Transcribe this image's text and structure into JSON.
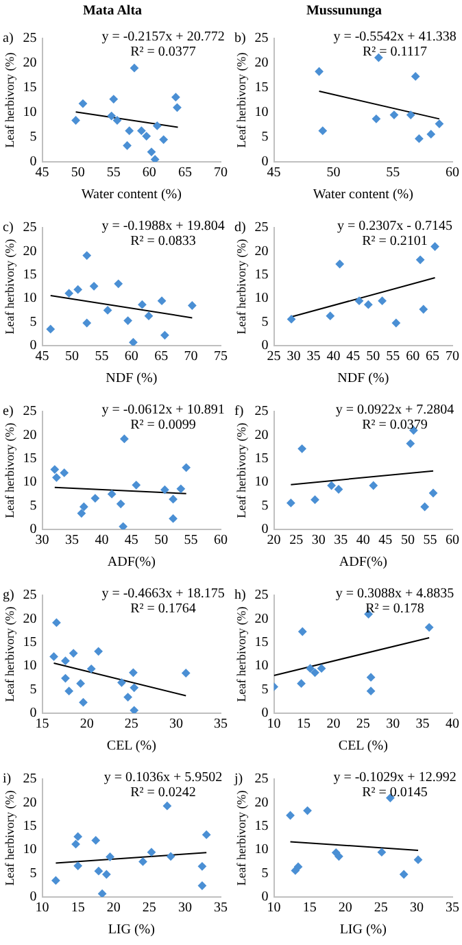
{
  "chart_data": [
    {
      "type": "scatter",
      "title": "Mata Alta",
      "xlabel": "Water content (%)",
      "ylabel": "Leaf herbivory (%)",
      "annotations": [
        "a)",
        "y = -0.2157x + 20.772",
        "R² = 0.0377"
      ],
      "xlim": [
        45,
        70
      ],
      "xticks": [
        45,
        50,
        55,
        60,
        65,
        70
      ],
      "ylim": [
        0,
        25
      ],
      "yticks": [
        0,
        5,
        10,
        15,
        20,
        25
      ],
      "grid": false,
      "series": [
        {
          "type": "scatter",
          "marker": "diamond",
          "color": "#4a8fd4",
          "x": [
            49.7,
            50.7,
            55.0,
            54.7,
            55.5,
            57.9,
            57.2,
            56.9,
            58.9,
            59.6,
            61.1,
            60.3,
            60.8,
            62.0,
            63.7,
            63.9
          ],
          "values": [
            8.4,
            11.8,
            12.7,
            9.3,
            8.4,
            19.0,
            6.3,
            3.3,
            6.3,
            5.2,
            7.3,
            2.0,
            0.5,
            4.5,
            13.1,
            11.0
          ]
        },
        {
          "type": "line",
          "marker": "none",
          "color": "#000000",
          "x": [
            49.7,
            64.0
          ],
          "values": [
            10.1,
            7.0
          ]
        }
      ]
    },
    {
      "type": "scatter",
      "title": "Mussununga",
      "xlabel": "Water content (%)",
      "ylabel": "Leaf herbivory (%)",
      "annotations": [
        "b)",
        "y = -0.5542x + 41.338",
        "R² = 0.1117"
      ],
      "xlim": [
        45,
        60
      ],
      "xticks": [
        45,
        50,
        55,
        60
      ],
      "ylim": [
        0,
        25
      ],
      "yticks": [
        0,
        5,
        10,
        15,
        20,
        25
      ],
      "grid": false,
      "series": [
        {
          "type": "scatter",
          "marker": "diamond",
          "color": "#4a8fd4",
          "x": [
            48.8,
            49.1,
            53.8,
            53.6,
            55.1,
            56.5,
            56.9,
            57.2,
            58.2,
            58.9
          ],
          "values": [
            18.3,
            6.3,
            21.1,
            8.7,
            9.5,
            9.5,
            17.3,
            4.7,
            5.6,
            7.7
          ]
        },
        {
          "type": "line",
          "marker": "none",
          "color": "#000000",
          "x": [
            48.8,
            58.9
          ],
          "values": [
            14.3,
            8.7
          ]
        }
      ]
    },
    {
      "type": "scatter",
      "xlabel": "NDF (%)",
      "ylabel": "Leaf herbivory (%)",
      "annotations": [
        "c)",
        "y = -0.1988x + 19.804",
        "R² = 0.0833"
      ],
      "xlim": [
        45,
        75
      ],
      "xticks": [
        45,
        50,
        55,
        60,
        65,
        70,
        75
      ],
      "ylim": [
        0,
        25
      ],
      "yticks": [
        0,
        5,
        10,
        15,
        20,
        25
      ],
      "grid": false,
      "series": [
        {
          "type": "scatter",
          "marker": "diamond",
          "color": "#4a8fd4",
          "x": [
            46.4,
            49.5,
            51.0,
            52.5,
            52.5,
            53.7,
            56.0,
            57.8,
            59.4,
            60.3,
            61.8,
            62.6,
            62.9,
            65.1,
            65.6,
            70.2
          ],
          "values": [
            3.5,
            11.1,
            11.9,
            19.1,
            4.8,
            12.6,
            7.5,
            13.1,
            5.3,
            0.7,
            8.7,
            null,
            6.3,
            9.5,
            2.2,
            8.5
          ]
        },
        {
          "type": "line",
          "marker": "none",
          "color": "#000000",
          "x": [
            46.4,
            70.2
          ],
          "values": [
            10.6,
            5.9
          ]
        }
      ]
    },
    {
      "type": "scatter",
      "xlabel": "NDF (%)",
      "ylabel": "Leaf herbivory (%)",
      "annotations": [
        "d)",
        "y = 0.2307x - 0.7145",
        "R² = 0.2101"
      ],
      "xlim": [
        25,
        70
      ],
      "xticks": [
        25,
        30,
        35,
        40,
        45,
        50,
        55,
        60,
        65,
        70
      ],
      "ylim": [
        0,
        25
      ],
      "yticks": [
        0,
        5,
        10,
        15,
        20,
        25
      ],
      "grid": false,
      "series": [
        {
          "type": "scatter",
          "marker": "diamond",
          "color": "#4a8fd4",
          "x": [
            29.4,
            39.2,
            41.6,
            46.5,
            48.8,
            52.3,
            55.8,
            61.9,
            62.7,
            65.6
          ],
          "values": [
            5.6,
            6.3,
            17.3,
            9.5,
            8.7,
            9.5,
            4.8,
            18.2,
            7.7,
            21.0
          ]
        },
        {
          "type": "line",
          "marker": "none",
          "color": "#000000",
          "x": [
            29.4,
            65.6
          ],
          "values": [
            6.1,
            14.4
          ]
        }
      ]
    },
    {
      "type": "scatter",
      "xlabel": "ADF(%)",
      "ylabel": "Leaf herbivory (%)",
      "annotations": [
        "e)",
        "y = -0.0612x + 10.891",
        "R² = 0.0099"
      ],
      "xlim": [
        30,
        60
      ],
      "xticks": [
        30,
        35,
        40,
        45,
        50,
        55,
        60
      ],
      "ylim": [
        0,
        25
      ],
      "yticks": [
        0,
        5,
        10,
        15,
        20,
        25
      ],
      "grid": false,
      "series": [
        {
          "type": "scatter",
          "marker": "diamond",
          "color": "#4a8fd4",
          "x": [
            32.1,
            32.4,
            33.7,
            36.6,
            37.0,
            38.9,
            41.7,
            43.2,
            43.8,
            43.6,
            45.8,
            50.6,
            52.0,
            52.0,
            53.3,
            54.2
          ],
          "values": [
            12.7,
            11.0,
            12.0,
            3.4,
            4.8,
            6.6,
            7.5,
            5.4,
            19.2,
            0.6,
            9.4,
            8.4,
            6.4,
            2.3,
            8.6,
            13.1
          ]
        },
        {
          "type": "line",
          "marker": "none",
          "color": "#000000",
          "x": [
            32.1,
            54.2
          ],
          "values": [
            8.9,
            7.6
          ]
        }
      ]
    },
    {
      "type": "scatter",
      "xlabel": "ADF(%)",
      "ylabel": "Leaf herbivory (%)",
      "annotations": [
        "f)",
        "y = 0.0922x + 7.2804",
        "R² = 0.0379"
      ],
      "xlim": [
        20,
        60
      ],
      "xticks": [
        20,
        25,
        30,
        35,
        40,
        45,
        50,
        55,
        60
      ],
      "ylim": [
        0,
        25
      ],
      "yticks": [
        0,
        5,
        10,
        15,
        20,
        25
      ],
      "grid": false,
      "series": [
        {
          "type": "scatter",
          "marker": "diamond",
          "color": "#4a8fd4",
          "x": [
            23.8,
            26.3,
            29.2,
            32.9,
            34.5,
            42.3,
            50.6,
            51.3,
            53.8,
            55.7
          ],
          "values": [
            5.6,
            17.1,
            6.3,
            9.3,
            8.5,
            9.3,
            18.2,
            21.0,
            4.8,
            7.7
          ]
        },
        {
          "type": "line",
          "marker": "none",
          "color": "#000000",
          "x": [
            23.8,
            55.7
          ],
          "values": [
            9.5,
            12.4
          ]
        }
      ]
    },
    {
      "type": "scatter",
      "xlabel": "CEL (%)",
      "ylabel": "Leaf herbivory (%)",
      "annotations": [
        "g)",
        "y = -0.4663x + 18.175",
        "R² = 0.1764"
      ],
      "xlim": [
        15,
        35
      ],
      "xticks": [
        15,
        20,
        25,
        30,
        35
      ],
      "ylim": [
        0,
        25
      ],
      "yticks": [
        0,
        5,
        10,
        15,
        20,
        25
      ],
      "grid": false,
      "series": [
        {
          "type": "scatter",
          "marker": "diamond",
          "color": "#4a8fd4",
          "x": [
            16.3,
            16.6,
            17.6,
            17.6,
            18.0,
            18.5,
            19.3,
            19.6,
            20.5,
            21.3,
            23.9,
            24.6,
            25.2,
            25.3,
            25.3,
            31.1
          ],
          "values": [
            12.0,
            19.2,
            11.1,
            7.4,
            4.7,
            12.7,
            6.3,
            2.3,
            9.4,
            13.1,
            6.5,
            3.4,
            8.6,
            5.4,
            0.6,
            8.5
          ]
        },
        {
          "type": "line",
          "marker": "none",
          "color": "#000000",
          "x": [
            16.3,
            31.1
          ],
          "values": [
            10.6,
            3.7
          ]
        }
      ]
    },
    {
      "type": "scatter",
      "xlabel": "CEL (%)",
      "ylabel": "Leaf herbivory (%)",
      "annotations": [
        "h)",
        "y = 0.3088x + 4.8835",
        "R² = 0.178"
      ],
      "xlim": [
        10,
        40
      ],
      "xticks": [
        10,
        15,
        20,
        25,
        30,
        35,
        40
      ],
      "ylim": [
        0,
        25
      ],
      "yticks": [
        0,
        5,
        10,
        15,
        20,
        25
      ],
      "grid": false,
      "series": [
        {
          "type": "scatter",
          "marker": "diamond",
          "color": "#4a8fd4",
          "x": [
            10.0,
            14.6,
            14.8,
            16.1,
            16.9,
            18.0,
            25.9,
            26.3,
            26.3,
            36.1
          ],
          "values": [
            5.6,
            6.3,
            17.3,
            9.5,
            8.6,
            9.5,
            21.0,
            7.6,
            4.7,
            18.2
          ]
        },
        {
          "type": "line",
          "marker": "none",
          "color": "#000000",
          "x": [
            10.0,
            36.1
          ],
          "values": [
            8.0,
            16.0
          ]
        }
      ]
    },
    {
      "type": "scatter",
      "xlabel": "LIG (%)",
      "ylabel": "Leaf herbivory (%)",
      "annotations": [
        "i)",
        "y = 0.1036x + 5.9502",
        "R² = 0.0242"
      ],
      "xlim": [
        10,
        35
      ],
      "xticks": [
        10,
        15,
        20,
        25,
        30,
        35
      ],
      "ylim": [
        0,
        25
      ],
      "yticks": [
        0,
        5,
        10,
        15,
        20,
        25
      ],
      "grid": false,
      "series": [
        {
          "type": "scatter",
          "marker": "diamond",
          "color": "#4a8fd4",
          "x": [
            11.9,
            14.7,
            15.0,
            15.0,
            17.5,
            17.9,
            18.4,
            19.0,
            19.5,
            24.1,
            25.3,
            27.5,
            28.0,
            32.4,
            32.4,
            33.0
          ],
          "values": [
            3.5,
            11.2,
            12.8,
            6.6,
            12.0,
            5.5,
            0.7,
            4.8,
            8.5,
            7.5,
            9.5,
            19.3,
            8.6,
            6.5,
            2.4,
            13.2
          ]
        },
        {
          "type": "line",
          "marker": "none",
          "color": "#000000",
          "x": [
            11.9,
            33.0
          ],
          "values": [
            7.2,
            9.4
          ]
        }
      ]
    },
    {
      "type": "scatter",
      "xlabel": "LIG (%)",
      "ylabel": "Leaf herbivory (%)",
      "annotations": [
        "j)",
        "y = -0.1029x + 12.992",
        "R² = 0.0145"
      ],
      "xlim": [
        10,
        35
      ],
      "xticks": [
        10,
        15,
        20,
        25,
        30,
        35
      ],
      "ylim": [
        0,
        25
      ],
      "yticks": [
        0,
        5,
        10,
        15,
        20,
        25
      ],
      "grid": false,
      "series": [
        {
          "type": "scatter",
          "marker": "diamond",
          "color": "#4a8fd4",
          "x": [
            12.3,
            14.7,
            13.0,
            13.4,
            18.7,
            19.1,
            25.1,
            26.3,
            28.2,
            30.2
          ],
          "values": [
            17.3,
            18.3,
            5.6,
            6.4,
            9.4,
            8.6,
            9.5,
            21.0,
            4.8,
            7.9
          ]
        },
        {
          "type": "line",
          "marker": "none",
          "color": "#000000",
          "x": [
            12.3,
            30.2
          ],
          "values": [
            11.7,
            9.9
          ]
        }
      ]
    }
  ]
}
